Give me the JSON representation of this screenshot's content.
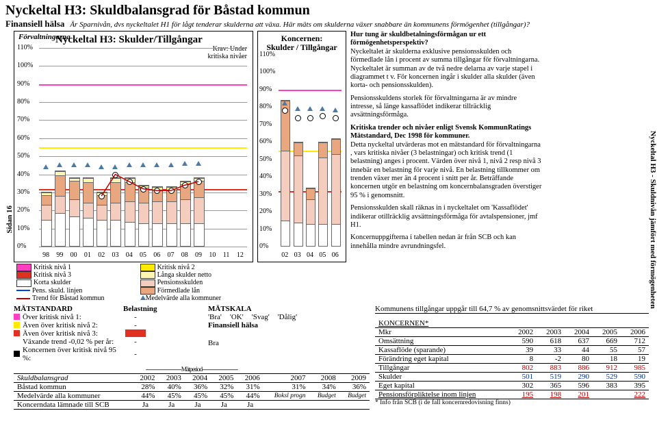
{
  "header": {
    "title": "Nyckeltal H3: Skuldbalansgrad för Båstad kommun",
    "sub": "Finansiell hälsa",
    "italic": "Är Sparnivån, dvs nyckeltalet H1 för lågt tenderar skulderna att växa. Här mäts om skulderna växer snabbare än kommunens förmögenhet (tillgångar)?"
  },
  "side_left": "Sidan 16",
  "side_right": "Nyckeltal H3 - Skuldnivån jämfört med förmögenheten",
  "chart1": {
    "corner": "Förvaltningarna",
    "title": "Nyckeltal H3: Skulder/Tillgångar",
    "krav1": "Krav: Under",
    "krav2": "kritiska nivåer",
    "ymax": 110,
    "ytick": 10,
    "x": [
      "98",
      "99",
      "00",
      "01",
      "02",
      "03",
      "04",
      "05",
      "06",
      "07",
      "08",
      "09",
      "10",
      "11",
      "12"
    ],
    "crit_colors": {
      "1": "#ff3fc0",
      "2": "#ffea00",
      "3": "#e03020"
    },
    "crit_levels": {
      "1": 90,
      "2": 55,
      "3": 32
    },
    "seg_colors": {
      "korta": "#ffffff",
      "pension": "#f4cdbf",
      "lan": "#e8a77e",
      "langa": "#fff6b0"
    },
    "bars": [
      {
        "korta": 14,
        "pension": 8,
        "lan": 5,
        "langa": 1
      },
      {
        "korta": 18,
        "pension": 9,
        "lan": 11,
        "langa": 2
      },
      {
        "korta": 16,
        "pension": 9,
        "lan": 10,
        "langa": 1
      },
      {
        "korta": 15,
        "pension": 8,
        "lan": 11,
        "langa": 2
      },
      {
        "korta": 14,
        "pension": 8,
        "lan": 5,
        "langa": 1
      },
      {
        "korta": 14,
        "pension": 9,
        "lan": 11,
        "langa": 2
      },
      {
        "korta": 13,
        "pension": 11,
        "lan": 10,
        "langa": 2
      },
      {
        "korta": 12,
        "pension": 11,
        "lan": 8,
        "langa": 1
      },
      {
        "korta": 12,
        "pension": 12,
        "lan": 6,
        "langa": 1
      },
      {
        "korta": 12,
        "pension": 12,
        "lan": 6,
        "langa": 1
      },
      {
        "korta": 12,
        "pension": 13,
        "lan": 8,
        "langa": 1
      },
      {
        "korta": 12,
        "pension": 14,
        "lan": 9,
        "langa": 1
      }
    ],
    "pens_line_color": "#0044dd",
    "pens_line": [
      8,
      9,
      9,
      8,
      8,
      9,
      11,
      11,
      12,
      12,
      13,
      14
    ],
    "medel_self_color": "#c00000",
    "medel_self": [
      28,
      40,
      36,
      32,
      31,
      31,
      34,
      36
    ],
    "medel_all_color": "#4a7aa8",
    "medel_all": [
      44,
      45,
      45,
      45,
      44,
      44,
      45,
      45,
      45,
      45,
      46,
      46
    ]
  },
  "chart2": {
    "title1": "Koncernen:",
    "title2": "Skulder / Tillgångar",
    "ymax": 110,
    "ytick": 10,
    "x": [
      "02",
      "03",
      "04",
      "05",
      "06"
    ],
    "bars": [
      {
        "korta": 14,
        "pens": 40,
        "lan": 28
      },
      {
        "korta": 13,
        "pens": 38,
        "lan": 7
      },
      {
        "korta": 12,
        "pens": 14,
        "lan": 6
      },
      {
        "korta": 12,
        "pens": 38,
        "lan": 8
      },
      {
        "korta": 12,
        "pens": 40,
        "lan": 8
      }
    ],
    "tri": [
      82,
      79,
      79,
      79,
      78
    ],
    "circ": [
      78,
      74,
      74,
      75,
      74
    ]
  },
  "legend": {
    "l": [
      {
        "sw": "#ff3fc0",
        "t": "Kritisk nivå 1"
      },
      {
        "sw": "#e03020",
        "t": "Kritisk nivå 3"
      },
      {
        "sw": "#ffffff",
        "t": "Korta skulder"
      },
      {
        "ln": "#0044dd",
        "t": "Pens. skuld. linjen"
      },
      {
        "ln": "#c00000",
        "t": "Trend för Båstad kommun"
      }
    ],
    "r": [
      {
        "sw": "#ffea00",
        "t": "Kritisk nivå 2"
      },
      {
        "sw": "#fff6b0",
        "t": "Långa skulder netto"
      },
      {
        "sw": "#f4cdbf",
        "t": "Pensionsskulden"
      },
      {
        "sw": "#e8a77e",
        "t": "Förmedlade lån"
      },
      {
        "tri": "#4a7aa8",
        "t": "Medelvärde alla kommuner"
      }
    ]
  },
  "tcol": {
    "p1b": "Hur tung är skuldbetalningsförmågan ur ett förmögenhetsperspektiv?",
    "p1": "Nyckeltalet är skulderna exklusive pensionsskulden och förmedlade lån i procent av summa tillgångar för förvaltningarna. Nyckeltalet är summan av de två nedre delarna av varje stapel i diagrammet t v.  För koncernen ingår i skulder alla skulder (även korta- och pensionsskulden).",
    "p2": "Pensionsskuldens storlek för förvaltningarna är av mindre intresse, så länge kassaflödet indikerar tillräcklig avsättningsförmåga.",
    "p3b": "Kritiska trender och nivåer enligt Svensk KommunRatings Mätstandard, Dec 1998 för kommuner.",
    "p3": "Detta nyckeltal utvärderas mot en mätstandard för förvaltningarna , vars kritiska nivåer (3 belastningar) och kritisk trend (1 belastning) anges i procent. Värden över nivå 1, nivå 2 resp nivå 3 innebär en belastning för varje nivå. En belastning tillkommer om trenden växer mer än 4 procent i snitt per år.  Beträffande koncernen utgör en belastning om koncernbalansgraden överstiger 95 % i genomsnitt.",
    "p4": "Pensionsskulden skall räknas in i nyckeltalet om 'Kassaflödet' indikerar otillräcklig avsättningsförmåga för avtalspensioner, jmf H1.",
    "p5": "Koncernuppgifterna i tabellen nedan är från SCB och kan innehålla mindre avrundningsfel."
  },
  "ms": {
    "h": "MÄTSTANDARD",
    "h2": "Belastning",
    "h3": "MÄTSKALA",
    "r1": "Över kritisk nivå 1:",
    "r1v": "-",
    "r2": "Även över kritisk nivå 2:",
    "r2v": "-",
    "r3": "Även över kritisk nivå 3:",
    "r3v": "",
    "r4": "Växande trend -0,02 % per år:",
    "r4v": "-",
    "r5": "Koncernen över kritisk nivå 95 %:",
    "r5v": "-",
    "scale": [
      "'Bra'",
      "'OK'",
      "'Svag'",
      "'Dålig'"
    ],
    "scale2": "Finansiell hälsa",
    "res": "Bra"
  },
  "dash": "------------------------Mätperiod------------------------",
  "skt": {
    "h": "Skuldbalansgrad",
    "yrs": [
      "2002",
      "2003",
      "2004",
      "2005",
      "2006",
      "2007",
      "2008",
      "2009"
    ],
    "r1": "Båstad kommun",
    "r1v": [
      "28%",
      "40%",
      "36%",
      "32%",
      "31%",
      "31%",
      "34%",
      "36%"
    ],
    "r2": "Medelvärde alla kommuner",
    "r2v": [
      "44%",
      "45%",
      "45%",
      "45%",
      "44%"
    ],
    "r2n": [
      "Boksl progn",
      "Budget",
      "Budget"
    ],
    "r3": "Koncerndata lämnade till SCB",
    "r3v": [
      "Ja",
      "Ja",
      "Ja",
      "Ja",
      "Ja"
    ]
  },
  "rb": {
    "top": "Kommunens tillgångar uppgår till 64,7 % av genomsnittsvärdet för riket",
    "h": "KONCERNEN*",
    "yrs": [
      "2002",
      "2003",
      "2004",
      "2005",
      "2006"
    ],
    "rows": [
      {
        "l": "Mkr",
        "v": [
          "",
          "",
          "",
          "",
          ""
        ]
      },
      {
        "l": "Omsättning",
        "v": [
          "590",
          "618",
          "637",
          "669",
          "712"
        ]
      },
      {
        "l": "Kassaflöde (sparande)",
        "v": [
          "39",
          "33",
          "44",
          "55",
          "57"
        ]
      },
      {
        "l": "Förändring eget kapital",
        "v": [
          "8",
          "-2",
          "80",
          "18",
          "19"
        ]
      },
      {
        "l": "Tillgångar",
        "v": [
          "802",
          "883",
          "886",
          "912",
          "985"
        ],
        "c": "#c00000"
      },
      {
        "l": "Skulder",
        "v": [
          "501",
          "519",
          "290",
          "529",
          "590"
        ],
        "c": "#0033aa"
      },
      {
        "l": "Eget kapital",
        "v": [
          "302",
          "365",
          "596",
          "383",
          "395"
        ]
      },
      {
        "l": "Pensionsförpliktelse inom linjen",
        "v": [
          "195",
          "198",
          "201",
          "",
          "222"
        ],
        "c": "#c00000",
        "u": 1
      }
    ],
    "note": "* Info från SCB (i de fall koncernredovisning finns)"
  }
}
